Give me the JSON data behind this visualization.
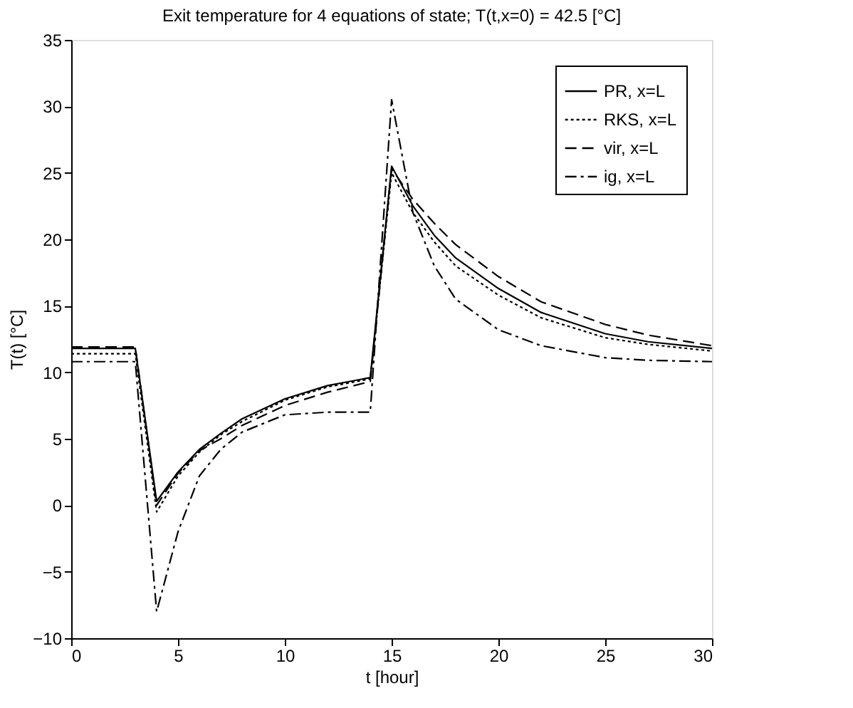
{
  "chart_data": {
    "type": "line",
    "title": "Exit temperature for 4 equations of state;  T(t,x=0) = 42.5 [°C]",
    "xlabel": "t [hour]",
    "ylabel": "T(t) [°C]",
    "x": [
      0,
      3,
      4,
      5,
      6,
      7,
      8,
      10,
      12,
      14,
      15,
      16,
      17,
      18,
      20,
      22,
      25,
      27,
      30
    ],
    "series": [
      {
        "name": "PR, x=L",
        "color": "#000000",
        "line_style": "solid",
        "values": [
          11.8,
          11.8,
          0.3,
          2.5,
          4.2,
          5.4,
          6.5,
          8.0,
          9.0,
          9.6,
          25.5,
          22.5,
          20.3,
          18.6,
          16.3,
          14.5,
          12.9,
          12.3,
          11.8
        ]
      },
      {
        "name": "RKS, x=L",
        "color": "#000000",
        "line_style": "dotted",
        "values": [
          11.4,
          11.4,
          -0.5,
          2.2,
          4.0,
          5.3,
          6.3,
          7.9,
          8.9,
          9.5,
          25.0,
          22.0,
          19.8,
          18.0,
          15.8,
          14.1,
          12.6,
          12.1,
          11.6
        ]
      },
      {
        "name": "vir, x=L",
        "color": "#000000",
        "line_style": "dashed",
        "values": [
          11.9,
          11.9,
          0.0,
          2.4,
          4.1,
          5.0,
          6.0,
          7.5,
          8.5,
          9.3,
          25.3,
          23.0,
          21.2,
          19.6,
          17.2,
          15.3,
          13.6,
          12.8,
          12.0
        ]
      },
      {
        "name": "ig, x=L",
        "color": "#000000",
        "line_style": "dashdot",
        "values": [
          10.8,
          10.8,
          -8.0,
          -2.0,
          2.2,
          4.2,
          5.5,
          6.8,
          7.0,
          7.0,
          30.5,
          22.0,
          18.0,
          15.5,
          13.2,
          12.0,
          11.1,
          10.9,
          10.8
        ]
      }
    ],
    "xlim": [
      0,
      30
    ],
    "xticks": [
      0,
      5,
      10,
      15,
      20,
      25,
      30
    ],
    "ylim": [
      -10,
      35
    ],
    "yticks": [
      -10,
      -5,
      0,
      5,
      10,
      15,
      20,
      25,
      30,
      35
    ],
    "grid": false,
    "legend": "top right",
    "marker": "none"
  }
}
